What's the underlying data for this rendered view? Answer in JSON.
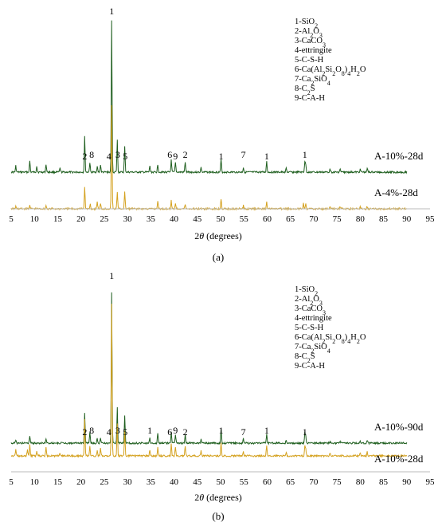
{
  "chart_data": [
    {
      "type": "line",
      "panel_label": "(a)",
      "xlabel": "2θ (degrees)",
      "xlabel_prefix": "2",
      "xlabel_theta": "θ",
      "xlabel_suffix": " (degrees)",
      "xlim": [
        5,
        95
      ],
      "xticks": [
        "5",
        "10",
        "15",
        "20",
        "25",
        "30",
        "35",
        "40",
        "45",
        "50",
        "55",
        "60",
        "65",
        "70",
        "75",
        "80",
        "85",
        "90",
        "95"
      ],
      "legend": [
        "1-SiO2",
        "2-Al2O3",
        "3-CaCO3",
        "4-ettringite",
        "5-C-S-H",
        "6-Ca(Al2Si2O8)4H2O",
        "7-Ca2SiO4",
        "8-C2S",
        "9-C-A-H"
      ],
      "series": [
        {
          "name": "A-10%-28d",
          "color": "#1f5f1f",
          "peaks": [
            [
              6,
              8
            ],
            [
              9,
              14
            ],
            [
              10.5,
              8
            ],
            [
              12.5,
              10
            ],
            [
              15.5,
              5
            ],
            [
              20.8,
              45
            ],
            [
              21.9,
              12
            ],
            [
              23.5,
              7
            ],
            [
              24.2,
              9
            ],
            [
              26.6,
              190
            ],
            [
              27.8,
              40
            ],
            [
              29.4,
              32
            ],
            [
              34.8,
              8
            ],
            [
              36.5,
              10
            ],
            [
              39.4,
              15
            ],
            [
              40.3,
              12
            ],
            [
              42.4,
              13
            ],
            [
              45.8,
              6
            ],
            [
              50.1,
              16
            ],
            [
              54.9,
              6
            ],
            [
              59.9,
              14
            ],
            [
              64.1,
              5
            ],
            [
              68.1,
              13
            ],
            [
              68.3,
              9
            ],
            [
              73.5,
              5
            ],
            [
              75.7,
              4
            ],
            [
              80,
              4
            ],
            [
              81.5,
              5
            ]
          ],
          "annotations": [
            [
              "1",
              26.6
            ],
            [
              "2",
              20.8
            ],
            [
              "8",
              22.3
            ],
            [
              "4",
              26.0
            ],
            [
              "3",
              27.9
            ],
            [
              "5",
              29.5
            ],
            [
              "6",
              39.1
            ],
            [
              "9",
              40.3
            ],
            [
              "2",
              42.4
            ],
            [
              "1",
              50.1
            ],
            [
              "7",
              54.9
            ],
            [
              "1",
              59.9
            ],
            [
              "1",
              68.1
            ]
          ]
        },
        {
          "name": "A-4%-28d",
          "color": "#d4a11e",
          "peaks": [
            [
              6,
              3
            ],
            [
              9,
              5
            ],
            [
              12.5,
              4
            ],
            [
              20.8,
              28
            ],
            [
              22,
              6
            ],
            [
              23.5,
              9
            ],
            [
              24.2,
              6
            ],
            [
              26.6,
              130
            ],
            [
              27.8,
              22
            ],
            [
              29.4,
              21
            ],
            [
              36.5,
              10
            ],
            [
              39.4,
              10
            ],
            [
              40.3,
              7
            ],
            [
              42.4,
              6
            ],
            [
              50.1,
              13
            ],
            [
              54.9,
              4
            ],
            [
              59.9,
              10
            ],
            [
              67.8,
              8
            ],
            [
              68.3,
              6
            ],
            [
              73.5,
              3
            ],
            [
              75.7,
              3
            ],
            [
              80,
              3
            ],
            [
              81.5,
              3
            ]
          ]
        }
      ]
    },
    {
      "type": "line",
      "panel_label": "(b)",
      "xlabel": "2θ (degrees)",
      "xlabel_prefix": "2",
      "xlabel_theta": "θ",
      "xlabel_suffix": " (degrees)",
      "xlim": [
        5,
        95
      ],
      "xticks": [
        "5",
        "10",
        "15",
        "20",
        "25",
        "30",
        "35",
        "40",
        "45",
        "50",
        "55",
        "60",
        "65",
        "70",
        "75",
        "80",
        "85",
        "90",
        "95"
      ],
      "legend": [
        "1-SiO2",
        "2-Al2O3",
        "3-CaCO3",
        "4-ettringite",
        "5-C-S-H",
        "6-Ca(Al2Si2O8)4H2O",
        "7-Ca2SiO4",
        "8-C2S",
        "9-C-A-H"
      ],
      "series": [
        {
          "name": "A-10%-90d",
          "color": "#1f5f1f",
          "peaks": [
            [
              6,
              3
            ],
            [
              9,
              8
            ],
            [
              12.5,
              5
            ],
            [
              20.8,
              38
            ],
            [
              21.9,
              14
            ],
            [
              23.5,
              6
            ],
            [
              24.2,
              6
            ],
            [
              26.6,
              190
            ],
            [
              27.8,
              45
            ],
            [
              29.4,
              35
            ],
            [
              34.8,
              6
            ],
            [
              36.5,
              12
            ],
            [
              39.4,
              14
            ],
            [
              40.3,
              11
            ],
            [
              42.4,
              12
            ],
            [
              45.8,
              5
            ],
            [
              50.1,
              18
            ],
            [
              54.9,
              6
            ],
            [
              59.9,
              12
            ],
            [
              64.1,
              4
            ],
            [
              68.1,
              13
            ],
            [
              68.3,
              8
            ],
            [
              73.5,
              3
            ],
            [
              75.7,
              3
            ],
            [
              80,
              3
            ],
            [
              81.5,
              4
            ]
          ],
          "annotations": [
            [
              "1",
              26.6
            ],
            [
              "2",
              20.8
            ],
            [
              "8",
              22.3
            ],
            [
              "4",
              26.0
            ],
            [
              "3",
              27.9
            ],
            [
              "5",
              29.5
            ],
            [
              "1",
              34.8
            ],
            [
              "6",
              39.1
            ],
            [
              "9",
              40.3
            ],
            [
              "2",
              42.4
            ],
            [
              "1",
              50.1
            ],
            [
              "7",
              54.9
            ],
            [
              "1",
              59.9
            ],
            [
              "1",
              68.1
            ]
          ]
        },
        {
          "name": "A-10%-28d",
          "color": "#d4a11e",
          "peaks": [
            [
              6,
              8
            ],
            [
              8.5,
              8
            ],
            [
              9,
              14
            ],
            [
              10.5,
              6
            ],
            [
              12.5,
              10
            ],
            [
              15.5,
              4
            ],
            [
              20.8,
              45
            ],
            [
              21.9,
              12
            ],
            [
              23.5,
              7
            ],
            [
              24.2,
              9
            ],
            [
              26.6,
              190
            ],
            [
              27.8,
              40
            ],
            [
              29.4,
              32
            ],
            [
              34.8,
              8
            ],
            [
              36.5,
              10
            ],
            [
              39.4,
              15
            ],
            [
              40.3,
              12
            ],
            [
              42.4,
              13
            ],
            [
              45.8,
              6
            ],
            [
              50.1,
              16
            ],
            [
              54.9,
              6
            ],
            [
              59.9,
              14
            ],
            [
              64.1,
              5
            ],
            [
              68.1,
              13
            ],
            [
              68.3,
              9
            ],
            [
              73.5,
              4
            ],
            [
              80,
              4
            ],
            [
              81.5,
              5
            ]
          ]
        }
      ]
    }
  ]
}
